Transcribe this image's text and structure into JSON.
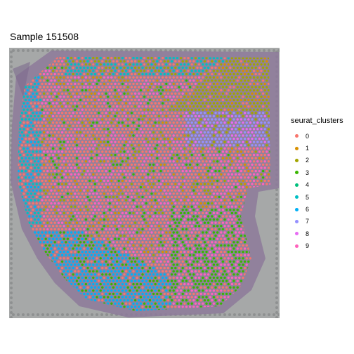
{
  "title": "Sample 151508",
  "legend": {
    "title": "seurat_clusters",
    "items": [
      {
        "label": "0",
        "color": "#F8766D"
      },
      {
        "label": "1",
        "color": "#D89000"
      },
      {
        "label": "2",
        "color": "#A3A500"
      },
      {
        "label": "3",
        "color": "#39B600"
      },
      {
        "label": "4",
        "color": "#00BF7D"
      },
      {
        "label": "5",
        "color": "#00BFC4"
      },
      {
        "label": "6",
        "color": "#00B0F6"
      },
      {
        "label": "7",
        "color": "#9590FF"
      },
      {
        "label": "8",
        "color": "#E76BF3"
      },
      {
        "label": "9",
        "color": "#FF62BC"
      }
    ]
  },
  "image": {
    "background": "gray slide with fiducial dot border",
    "tissue_stain": "purple H&E stained brain tissue section"
  }
}
